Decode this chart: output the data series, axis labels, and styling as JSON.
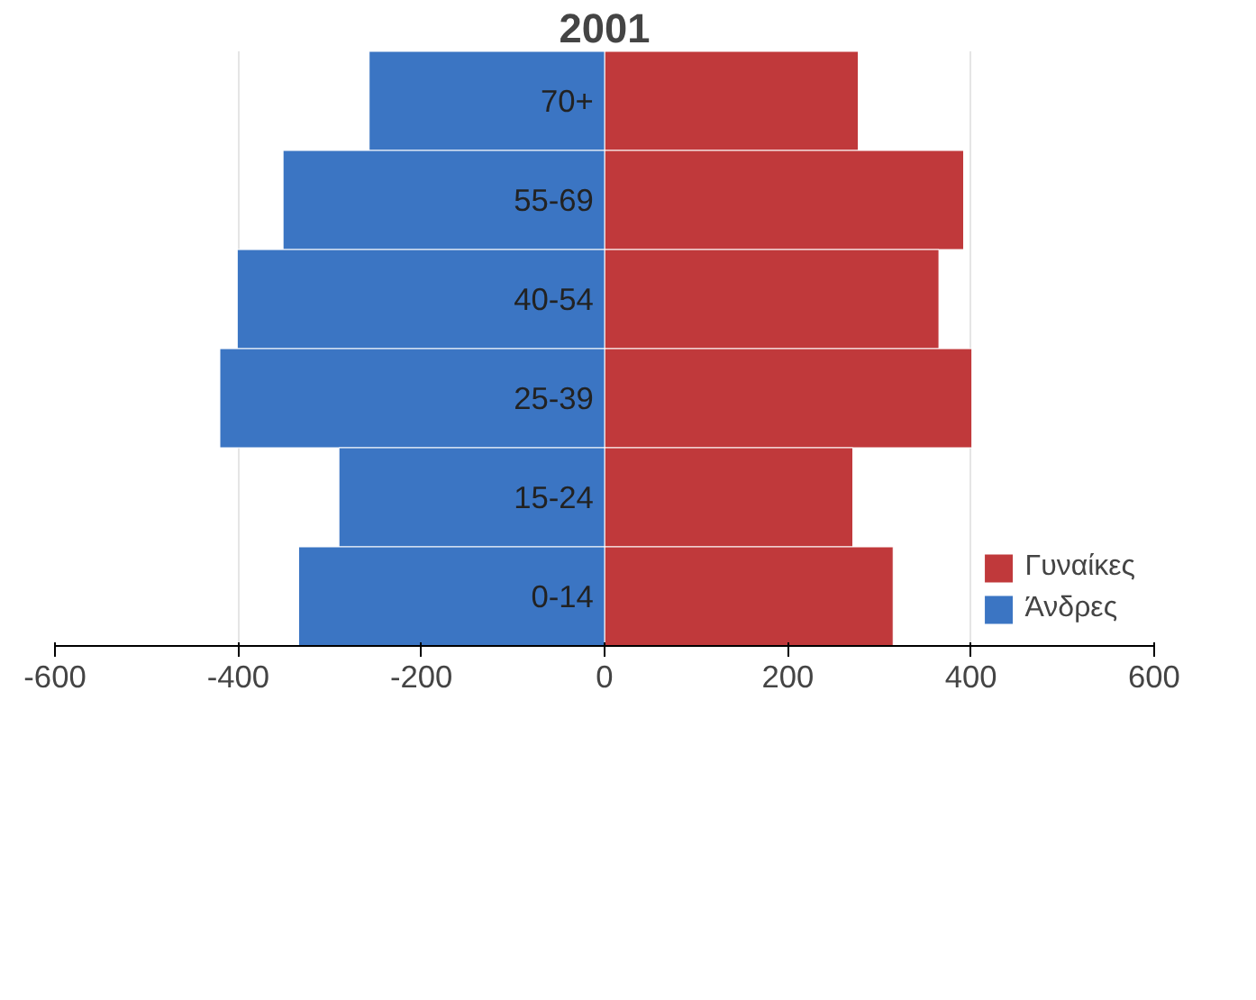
{
  "chart_data": {
    "type": "bar",
    "orientation": "horizontal",
    "stacked": true,
    "title": "2001",
    "categories": [
      "70+",
      "55-69",
      "40-54",
      "25-39",
      "15-24",
      "0-14"
    ],
    "series": [
      {
        "name": "Γυναίκες",
        "color": "#c0393b",
        "values": [
          277,
          392,
          365,
          401,
          271,
          315
        ]
      },
      {
        "name": "Άνδρες",
        "color": "#3b75c3",
        "values": [
          -257,
          -351,
          -401,
          -420,
          -290,
          -334
        ]
      }
    ],
    "xlim": [
      -600,
      600
    ],
    "xticks": [
      {
        "value": -600,
        "label": "-600"
      },
      {
        "value": -400,
        "label": "-400"
      },
      {
        "value": -200,
        "label": "-200"
      },
      0,
      200,
      400,
      600
    ],
    "grid": "x",
    "legend": "bottom right"
  }
}
